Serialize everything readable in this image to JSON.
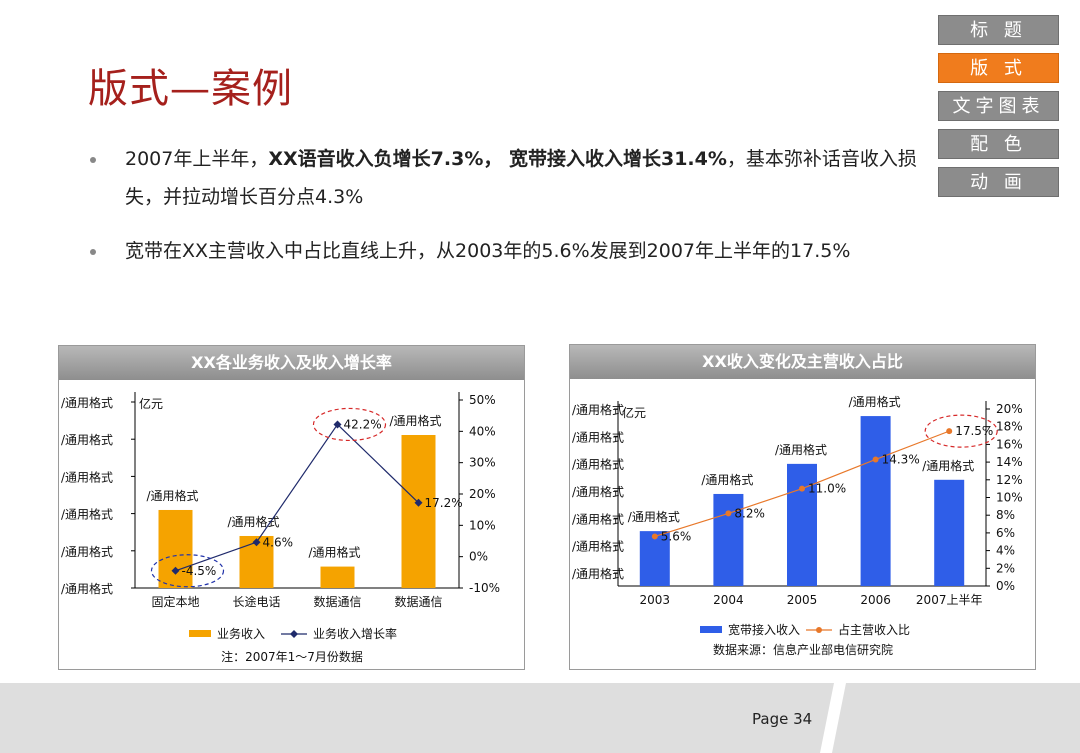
{
  "slide": {
    "title": "版式—案例",
    "page": "Page 34",
    "nav": [
      "标 题",
      "版 式",
      "文字图表",
      "配 色",
      "动 画"
    ],
    "nav_active_index": 1,
    "colors": {
      "accent": "#f07c1d",
      "title": "#a5201c",
      "nav": "#8c8c8c",
      "bar_orange": "#f5a300",
      "bar_blue": "#2f5ee8",
      "line_navy": "#1f2a6b",
      "line_orange": "#e8782a",
      "circle_red": "#d62828",
      "circle_blue": "#2233aa"
    }
  },
  "bullets": [
    {
      "segments": [
        {
          "text": "2007年上半年，",
          "bold": false
        },
        {
          "text": "XX语音收入负增长7.3%，",
          "bold": true
        },
        {
          "text": " 宽带接入收入增长31.4%",
          "bold": true
        },
        {
          "text": "，基本弥补话音收入损失，并拉动增长百分点4.3%",
          "bold": false
        }
      ]
    },
    {
      "segments": [
        {
          "text": "宽带在XX主营收入中占比直线上升，从2003年的5.6%发展到2007年上半年的17.5%",
          "bold": false
        }
      ]
    }
  ],
  "chart_data": [
    {
      "type": "bar",
      "title": "XX各业务收入及收入增长率",
      "ylabel": "亿元",
      "left_tick_labels": [
        "/通用格式",
        "/通用格式",
        "/通用格式",
        "/通用格式",
        "/通用格式",
        "/通用格式"
      ],
      "right_tick_labels": [
        "50%",
        "40%",
        "30%",
        "20%",
        "10%",
        "0%",
        "-10%"
      ],
      "right_ylim": [
        -10,
        50
      ],
      "categories": [
        "固定本地",
        "长途电话",
        "数据通信",
        "数据通信"
      ],
      "bar_fraction": [
        0.51,
        0.34,
        0.14,
        1.0
      ],
      "bar_labels": [
        "/通用格式",
        "/通用格式",
        "/通用格式",
        "/通用格式"
      ],
      "series": [
        {
          "name": "业务收入",
          "kind": "bar"
        },
        {
          "name": "业务收入增长率",
          "kind": "line",
          "values": [
            -4.5,
            4.6,
            42.2,
            17.2
          ],
          "labels": [
            "-4.5%",
            "4.6%",
            "42.2%",
            "17.2%"
          ]
        }
      ],
      "highlight": [
        0,
        2
      ],
      "note": "注：2007年1～7月份数据"
    },
    {
      "type": "bar",
      "title": "XX收入变化及主营收入占比",
      "ylabel": "亿元",
      "left_tick_labels": [
        "/通用格式",
        "/通用格式",
        "/通用格式",
        "/通用格式",
        "/通用格式",
        "/通用格式",
        "/通用格式"
      ],
      "right_tick_labels": [
        "20%",
        "18%",
        "16%",
        "14%",
        "12%",
        "10%",
        "8%",
        "6%",
        "4%",
        "2%",
        "0%"
      ],
      "right_ylim": [
        0,
        20
      ],
      "categories": [
        "2003",
        "2004",
        "2005",
        "2006",
        "2007上半年"
      ],
      "bar_fraction": [
        0.31,
        0.52,
        0.69,
        0.96,
        0.6
      ],
      "bar_labels": [
        "/通用格式",
        "/通用格式",
        "/通用格式",
        "/通用格式",
        "/通用格式"
      ],
      "series": [
        {
          "name": "宽带接入收入",
          "kind": "bar"
        },
        {
          "name": "占主营收入比",
          "kind": "line",
          "values": [
            5.6,
            8.2,
            11.0,
            14.3,
            17.5
          ],
          "labels": [
            "5.6%",
            "8.2%",
            "11.0%",
            "14.3%",
            "17.5%"
          ]
        }
      ],
      "highlight": [
        4
      ],
      "note": "数据来源：信息产业部电信研究院"
    }
  ]
}
